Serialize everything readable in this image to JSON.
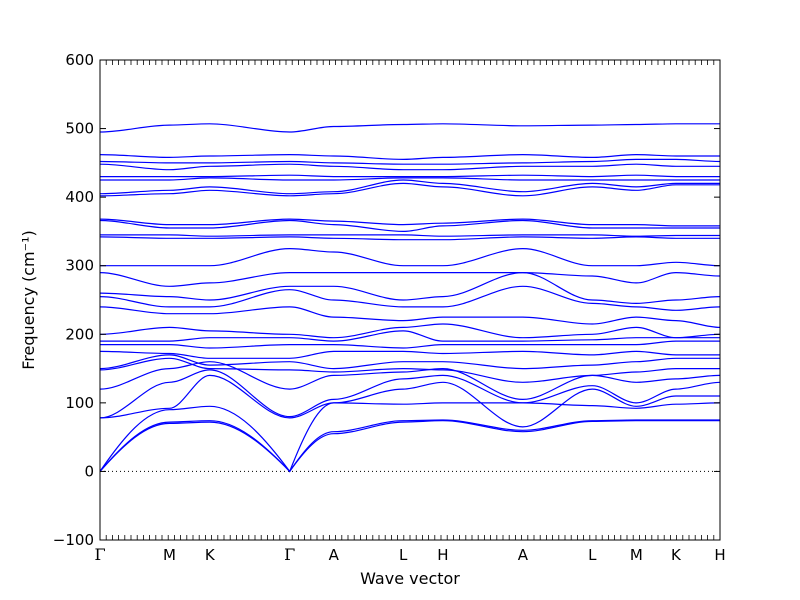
{
  "chart_data": {
    "type": "line",
    "title": "",
    "xlabel": "Wave vector",
    "ylabel": "Frequency (cm⁻¹)",
    "ylim": [
      -100,
      600
    ],
    "yticks": [
      -100,
      0,
      100,
      200,
      300,
      400,
      500,
      600
    ],
    "x_points": [
      {
        "label": "Γ",
        "x": 0.0
      },
      {
        "label": "M",
        "x": 0.112
      },
      {
        "label": "K",
        "x": 0.177
      },
      {
        "label": "Γ",
        "x": 0.306
      },
      {
        "label": "A",
        "x": 0.377
      },
      {
        "label": "L",
        "x": 0.489
      },
      {
        "label": "H",
        "x": 0.553
      },
      {
        "label": "A",
        "x": 0.682
      },
      {
        "label": "L",
        "x": 0.794
      },
      {
        "label": "M",
        "x": 0.865
      },
      {
        "label": "K",
        "x": 0.929
      },
      {
        "label": "H",
        "x": 1.0
      }
    ],
    "zero_line": true,
    "line_color": "#0000ff",
    "series": [
      {
        "y": [
          0,
          70,
          72,
          0,
          55,
          72,
          74,
          58,
          73,
          74,
          74,
          74
        ]
      },
      {
        "y": [
          0,
          72,
          74,
          0,
          58,
          74,
          75,
          60,
          74,
          75,
          75,
          75
        ]
      },
      {
        "y": [
          0,
          90,
          95,
          0,
          100,
          98,
          100,
          100,
          96,
          92,
          98,
          100
        ]
      },
      {
        "y": [
          78,
          92,
          140,
          78,
          100,
          120,
          130,
          65,
          120,
          95,
          110,
          110
        ]
      },
      {
        "y": [
          78,
          130,
          148,
          80,
          105,
          135,
          140,
          100,
          125,
          100,
          120,
          130
        ]
      },
      {
        "y": [
          120,
          150,
          160,
          120,
          140,
          145,
          150,
          105,
          140,
          130,
          135,
          140
        ]
      },
      {
        "y": [
          148,
          165,
          150,
          148,
          145,
          150,
          148,
          130,
          140,
          145,
          150,
          150
        ]
      },
      {
        "y": [
          150,
          170,
          155,
          160,
          150,
          160,
          160,
          150,
          155,
          160,
          165,
          165
        ]
      },
      {
        "y": [
          175,
          172,
          165,
          165,
          175,
          175,
          172,
          175,
          170,
          175,
          170,
          170
        ]
      },
      {
        "y": [
          185,
          185,
          180,
          185,
          185,
          180,
          185,
          185,
          185,
          185,
          190,
          190
        ]
      },
      {
        "y": [
          190,
          190,
          195,
          195,
          190,
          205,
          190,
          190,
          192,
          195,
          195,
          195
        ]
      },
      {
        "y": [
          200,
          210,
          205,
          200,
          195,
          210,
          215,
          195,
          200,
          210,
          195,
          200
        ]
      },
      {
        "y": [
          240,
          230,
          230,
          240,
          225,
          220,
          225,
          225,
          215,
          225,
          220,
          210
        ]
      },
      {
        "y": [
          255,
          240,
          240,
          265,
          250,
          240,
          240,
          270,
          245,
          240,
          235,
          240
        ]
      },
      {
        "y": [
          260,
          255,
          250,
          270,
          270,
          250,
          255,
          290,
          250,
          245,
          250,
          255
        ]
      },
      {
        "y": [
          290,
          270,
          275,
          290,
          290,
          290,
          290,
          290,
          285,
          275,
          290,
          285
        ]
      },
      {
        "y": [
          300,
          300,
          300,
          325,
          320,
          300,
          300,
          325,
          300,
          300,
          305,
          300
        ]
      },
      {
        "y": [
          342,
          340,
          340,
          342,
          340,
          338,
          338,
          342,
          340,
          342,
          340,
          340
        ]
      },
      {
        "y": [
          345,
          345,
          343,
          345,
          345,
          345,
          343,
          345,
          345,
          343,
          344,
          344
        ]
      },
      {
        "y": [
          366,
          355,
          355,
          366,
          360,
          350,
          358,
          366,
          355,
          355,
          355,
          355
        ]
      },
      {
        "y": [
          368,
          360,
          360,
          368,
          365,
          360,
          362,
          368,
          360,
          360,
          358,
          358
        ]
      },
      {
        "y": [
          402,
          405,
          410,
          402,
          405,
          420,
          415,
          402,
          415,
          410,
          418,
          418
        ]
      },
      {
        "y": [
          405,
          410,
          415,
          405,
          408,
          425,
          420,
          408,
          420,
          415,
          420,
          420
        ]
      },
      {
        "y": [
          425,
          425,
          428,
          425,
          425,
          428,
          428,
          425,
          425,
          425,
          425,
          425
        ]
      },
      {
        "y": [
          430,
          430,
          430,
          432,
          430,
          430,
          430,
          432,
          430,
          432,
          430,
          430
        ]
      },
      {
        "y": [
          448,
          440,
          445,
          448,
          445,
          440,
          440,
          445,
          445,
          448,
          445,
          445
        ]
      },
      {
        "y": [
          452,
          450,
          450,
          452,
          450,
          448,
          448,
          450,
          452,
          455,
          455,
          452
        ]
      },
      {
        "y": [
          462,
          458,
          460,
          462,
          460,
          455,
          458,
          462,
          458,
          462,
          460,
          460
        ]
      },
      {
        "y": [
          495,
          505,
          507,
          495,
          503,
          506,
          507,
          504,
          505,
          506,
          507,
          507
        ]
      }
    ]
  }
}
